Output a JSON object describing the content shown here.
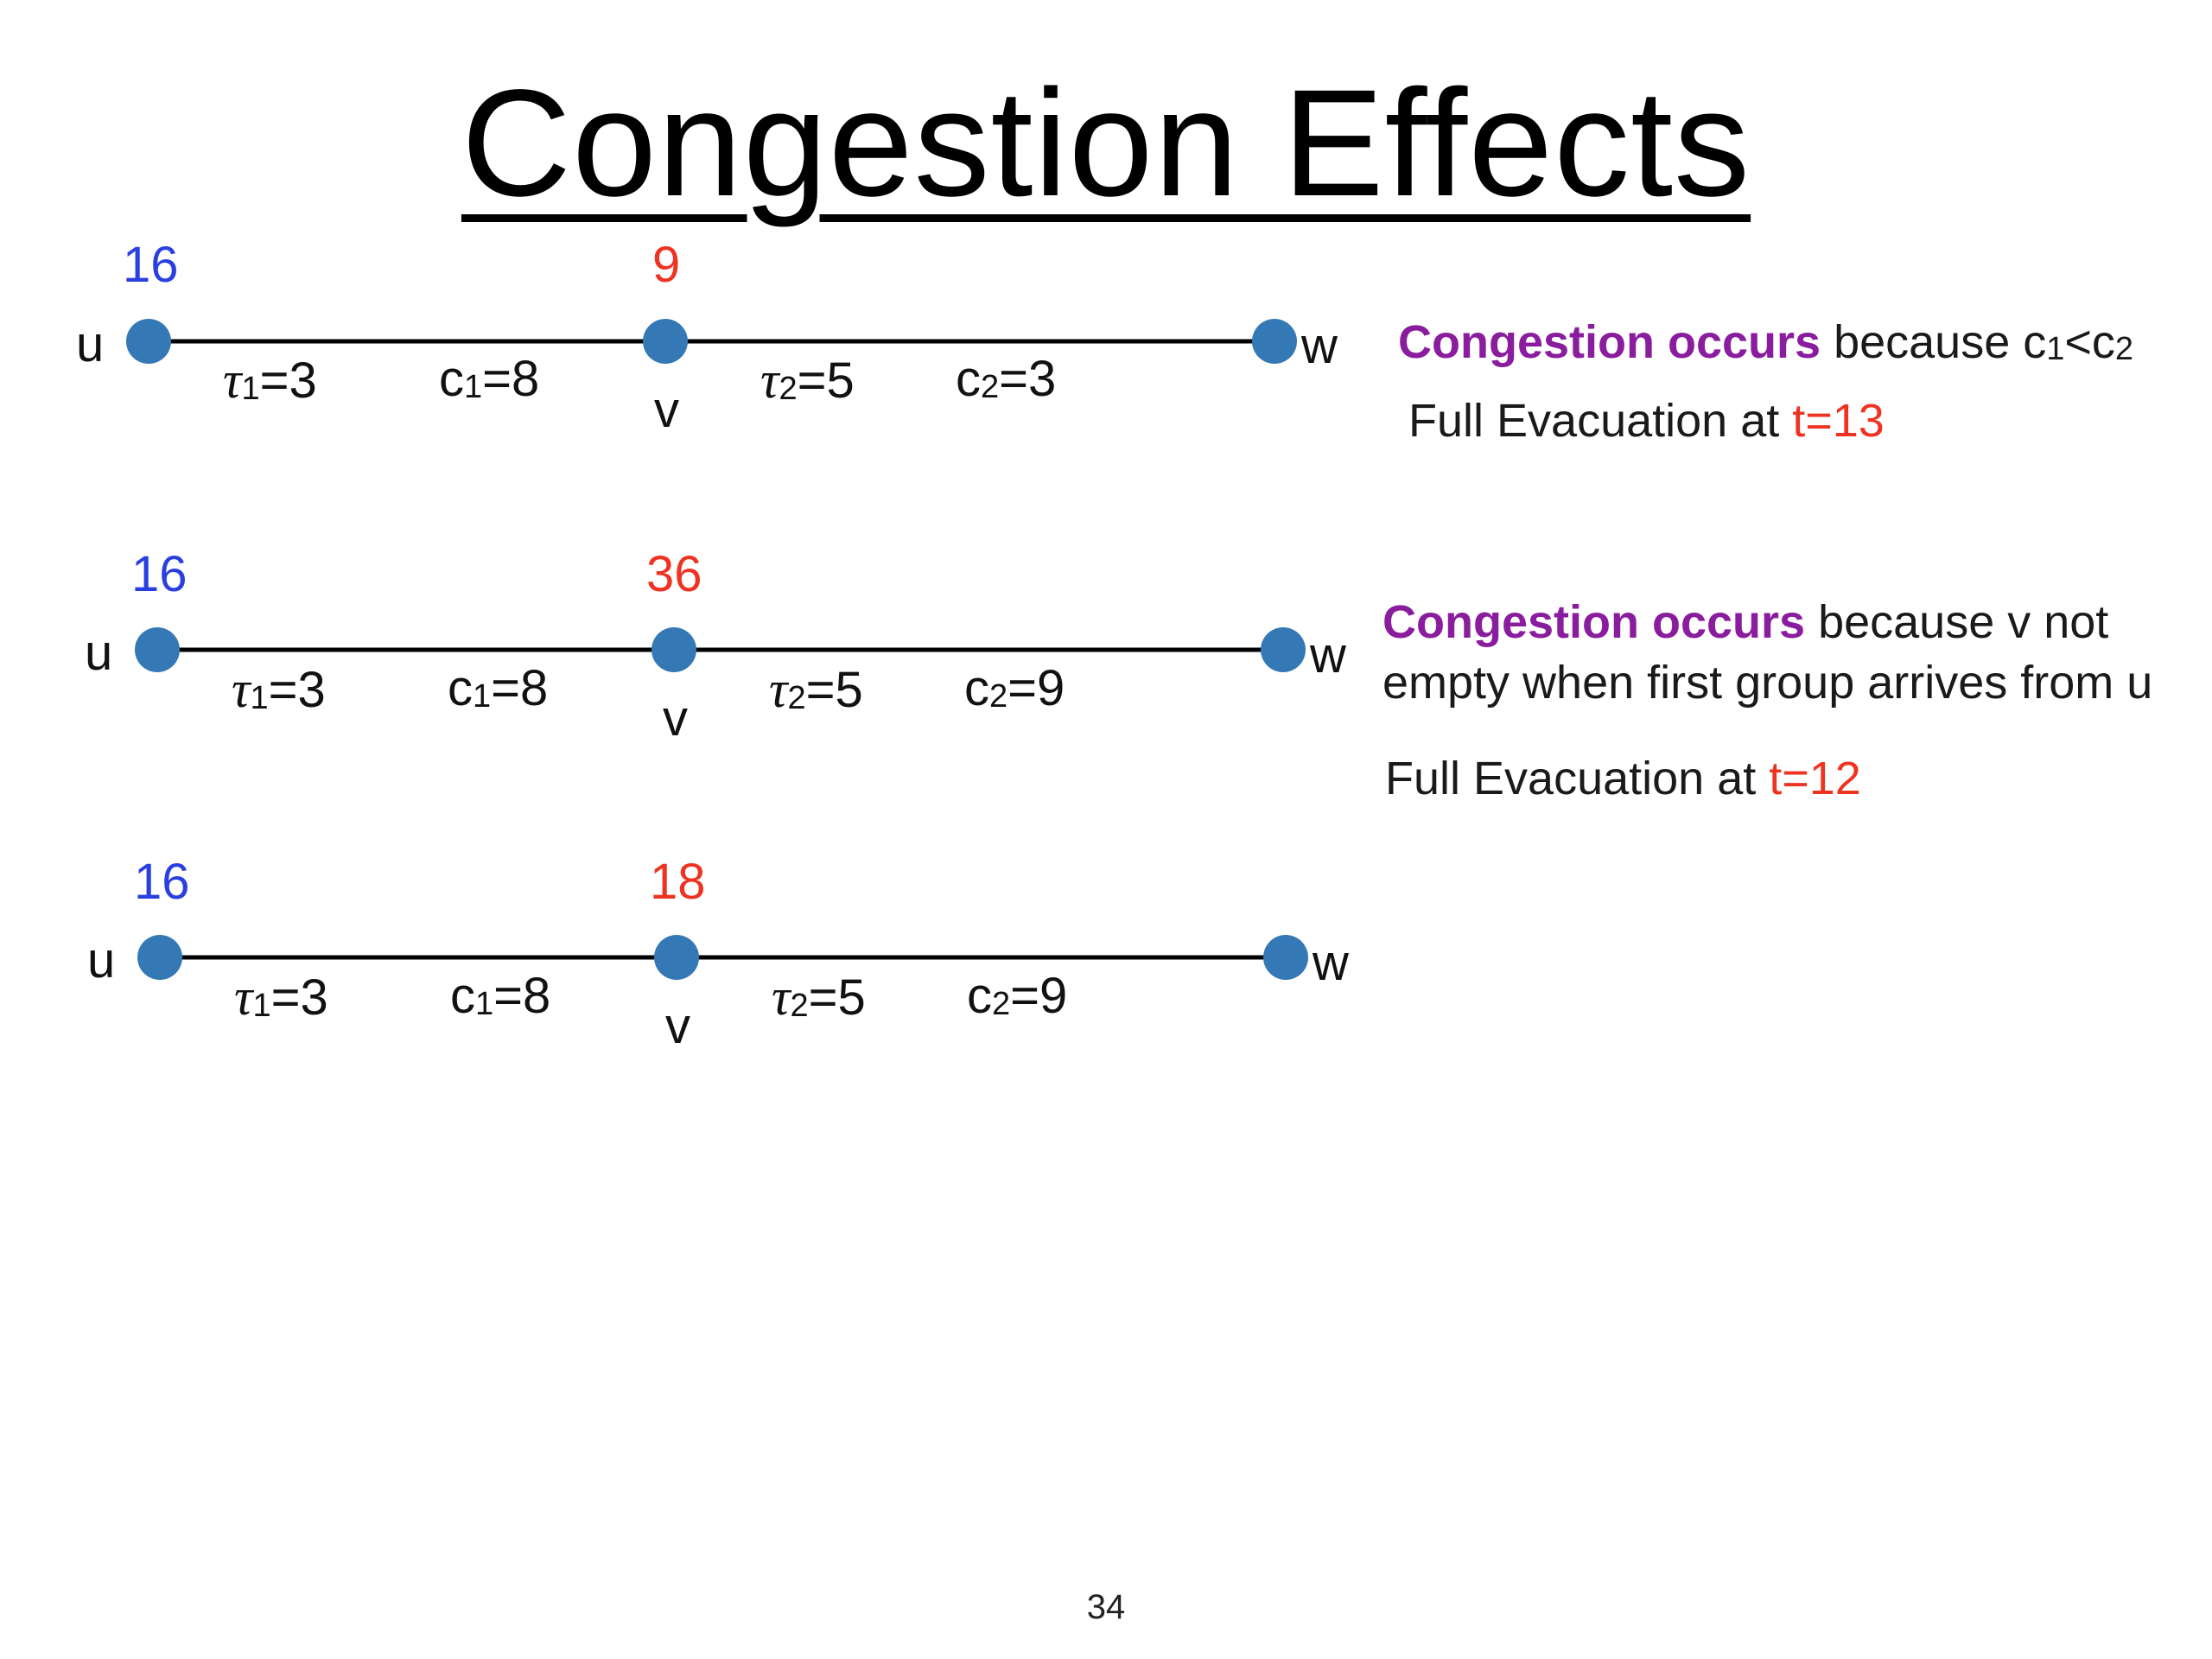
{
  "slide": {
    "title": "Congestion  Effects",
    "page_number": "34"
  },
  "style": {
    "node_color": "#3479b5",
    "supply_color": "#2a3fe0",
    "congestion_color": "#ee3322",
    "highlight_color": "#8a1d9e"
  },
  "rows": [
    {
      "u_count": "16",
      "v_count": "9",
      "u_label": "u",
      "v_label": "v",
      "w_label": "w",
      "tau1": "3",
      "c1": "8",
      "tau2": "5",
      "c2": "3"
    },
    {
      "u_count": "16",
      "v_count": "36",
      "u_label": "u",
      "v_label": "v",
      "w_label": "w",
      "tau1": "3",
      "c1": "8",
      "tau2": "5",
      "c2": "9"
    },
    {
      "u_count": "16",
      "v_count": "18",
      "u_label": "u",
      "v_label": "v",
      "w_label": "w",
      "tau1": "3",
      "c1": "8",
      "tau2": "5",
      "c2": "9"
    }
  ],
  "notes": [
    {
      "highlight": "Congestion occurs",
      "reason_line1": " because  c",
      "sub_a": "1",
      "lt": "<c",
      "sub_b": "2",
      "evac_prefix": "Full Evacuation at ",
      "evac_time": "t=13"
    },
    {
      "highlight": "Congestion occurs",
      "reason_line1": " because v not",
      "reason_line2": "empty when first group arrives from u",
      "evac_prefix": "Full Evacuation at ",
      "evac_time": "t=12"
    }
  ]
}
